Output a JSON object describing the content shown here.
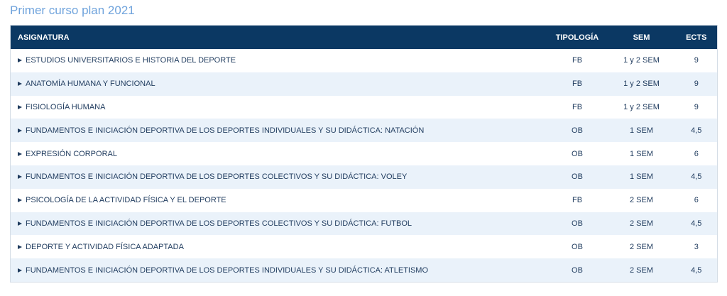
{
  "header": {
    "title": "Primer curso plan 2021"
  },
  "table": {
    "columns": [
      "ASIGNATURA",
      "TIPOLOGÍA",
      "SEM",
      "ECTS"
    ],
    "rows": [
      [
        "ESTUDIOS UNIVERSITARIOS E HISTORIA DEL DEPORTE",
        "FB",
        "1 y 2 SEM",
        "9"
      ],
      [
        "ANATOMÍA HUMANA Y FUNCIONAL",
        "FB",
        "1 y 2 SEM",
        "9"
      ],
      [
        "FISIOLOGÍA HUMANA",
        "FB",
        "1 y 2 SEM",
        "9"
      ],
      [
        "FUNDAMENTOS E INICIACIÓN DEPORTIVA DE LOS DEPORTES INDIVIDUALES Y SU DIDÁCTICA: NATACIÓN",
        "OB",
        "1 SEM",
        "4,5"
      ],
      [
        "EXPRESIÓN CORPORAL",
        "OB",
        "1 SEM",
        "6"
      ],
      [
        "FUNDAMENTOS E INICIACIÓN DEPORTIVA DE LOS DEPORTES COLECTIVOS Y SU DIDÁCTICA: VOLEY",
        "OB",
        "1 SEM",
        "4,5"
      ],
      [
        "PSICOLOGÍA DE LA ACTIVIDAD FÍSICA Y EL DEPORTE",
        "FB",
        "2 SEM",
        "6"
      ],
      [
        "FUNDAMENTOS E INICIACIÓN DEPORTIVA DE LOS DEPORTES COLECTIVOS Y SU DIDÁCTICA: FUTBOL",
        "OB",
        "2 SEM",
        "4,5"
      ],
      [
        "DEPORTE Y ACTIVIDAD FÍSICA ADAPTADA",
        "OB",
        "2 SEM",
        "3"
      ],
      [
        "FUNDAMENTOS E INICIACIÓN DEPORTIVA DE LOS DEPORTES INDIVIDUALES Y SU DIDÁCTICA: ATLETISMO",
        "OB",
        "2 SEM",
        "4,5"
      ]
    ]
  }
}
